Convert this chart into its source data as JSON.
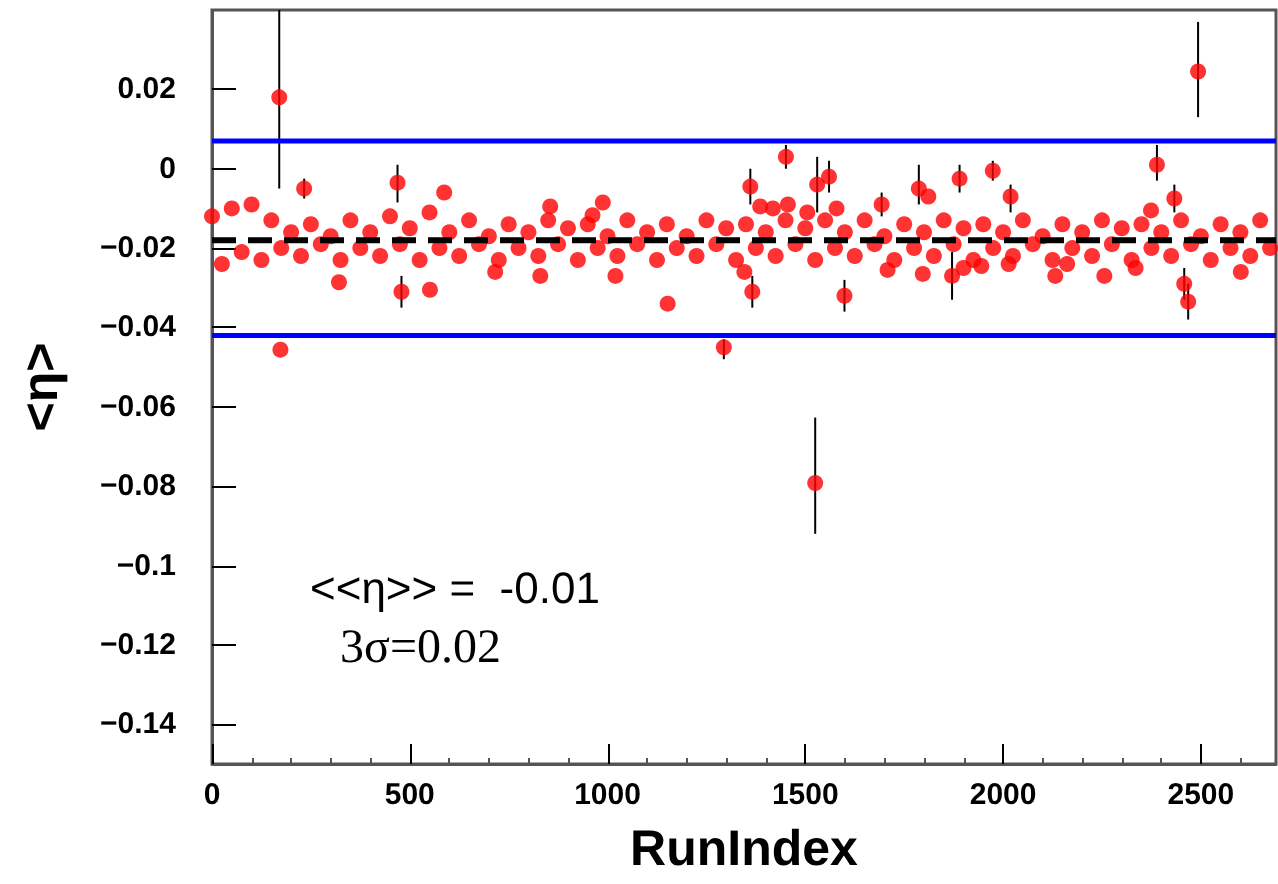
{
  "chart_data": {
    "type": "scatter",
    "xlabel": "RunIndex",
    "ylabel": "<η>",
    "xlim": [
      0,
      2690
    ],
    "xticks": [
      0,
      500,
      1000,
      1500,
      2000,
      2500
    ],
    "ylim": [
      -0.15,
      0.04
    ],
    "yticks": [
      {
        "value": -0.14,
        "label": "−0.14"
      },
      {
        "value": -0.12,
        "label": "−0.12"
      },
      {
        "value": -0.1,
        "label": "−0.1"
      },
      {
        "value": -0.08,
        "label": "−0.08"
      },
      {
        "value": -0.06,
        "label": "−0.06"
      },
      {
        "value": -0.04,
        "label": "−0.04"
      },
      {
        "value": -0.02,
        "label": "−0.02"
      },
      0,
      0.02
    ],
    "grid": false,
    "marker": "circle",
    "series": [
      {
        "color": "#ff0000",
        "x": [
          0,
          25,
          50,
          75,
          100,
          125,
          150,
          175,
          200,
          225,
          250,
          275,
          300,
          325,
          350,
          375,
          400,
          425,
          450,
          475,
          500,
          525,
          550,
          575,
          600,
          625,
          650,
          675,
          700,
          725,
          750,
          775,
          800,
          825,
          850,
          875,
          900,
          925,
          950,
          975,
          1000,
          1025,
          1050,
          1075,
          1100,
          1125,
          1150,
          1175,
          1200,
          1225,
          1250,
          1275,
          1300,
          1325,
          1350,
          1375,
          1400,
          1425,
          1450,
          1475,
          1500,
          1525,
          1550,
          1575,
          1600,
          1625,
          1650,
          1675,
          1700,
          1725,
          1750,
          1775,
          1800,
          1825,
          1850,
          1875,
          1900,
          1925,
          1950,
          1975,
          2000,
          2025,
          2050,
          2075,
          2100,
          2125,
          2150,
          2175,
          2200,
          2225,
          2250,
          2275,
          2300,
          2325,
          2350,
          2375,
          2400,
          2425,
          2450,
          2475,
          2500,
          2525,
          2550,
          2575,
          2600,
          2625,
          2650,
          2675
        ],
        "values": [
          -0.012,
          -0.024,
          -0.01,
          -0.021,
          -0.009,
          -0.023,
          -0.013,
          -0.02,
          -0.016,
          -0.022,
          -0.014,
          -0.019,
          -0.017,
          -0.023,
          -0.013,
          -0.02,
          -0.016,
          -0.022,
          -0.012,
          -0.019,
          -0.015,
          -0.023,
          -0.011,
          -0.02,
          -0.016,
          -0.022,
          -0.013,
          -0.019,
          -0.017,
          -0.023,
          -0.014,
          -0.02,
          -0.016,
          -0.022,
          -0.013,
          -0.019,
          -0.015,
          -0.023,
          -0.014,
          -0.02,
          -0.017,
          -0.022,
          -0.013,
          -0.019,
          -0.016,
          -0.023,
          -0.014,
          -0.02,
          -0.017,
          -0.022,
          -0.013,
          -0.019,
          -0.015,
          -0.023,
          -0.014,
          -0.02,
          -0.016,
          -0.022,
          -0.013,
          -0.019,
          -0.015,
          -0.023,
          -0.013,
          -0.02,
          -0.016,
          -0.022,
          -0.013,
          -0.019,
          -0.017,
          -0.023,
          -0.014,
          -0.02,
          -0.016,
          -0.022,
          -0.013,
          -0.019,
          -0.015,
          -0.023,
          -0.014,
          -0.02,
          -0.016,
          -0.022,
          -0.013,
          -0.019,
          -0.017,
          -0.023,
          -0.014,
          -0.02,
          -0.016,
          -0.022,
          -0.013,
          -0.019,
          -0.015,
          -0.023,
          -0.014,
          -0.02,
          -0.016,
          -0.022,
          -0.013,
          -0.019,
          -0.017,
          -0.023,
          -0.014,
          -0.02,
          -0.016,
          -0.022,
          -0.013,
          -0.02
        ]
      },
      {
        "color": "#ff0000",
        "x": [
          170,
          173,
          233,
          321,
          469,
          479,
          551,
          587,
          716,
          830,
          855,
          962,
          988,
          1020,
          1152,
          1294,
          1346,
          1361,
          1366,
          1386,
          1418,
          1451,
          1456,
          1505,
          1525,
          1530,
          1560,
          1579,
          1599,
          1693,
          1708,
          1787,
          1797,
          1811,
          1871,
          1890,
          1900,
          1945,
          1974,
          2014,
          2019,
          2132,
          2162,
          2256,
          2335,
          2374,
          2389,
          2433,
          2458,
          2468,
          2493,
          2601
        ],
        "values": [
          0.018,
          -0.0456,
          -0.005,
          -0.0286,
          -0.0035,
          -0.031,
          -0.0305,
          -0.006,
          -0.026,
          -0.027,
          -0.0095,
          -0.0117,
          -0.0085,
          -0.027,
          -0.034,
          -0.045,
          -0.026,
          -0.0045,
          -0.031,
          -0.0095,
          -0.01,
          0.003,
          -0.009,
          -0.011,
          -0.0792,
          -0.004,
          -0.002,
          -0.01,
          -0.032,
          -0.009,
          -0.0255,
          -0.005,
          -0.0265,
          -0.007,
          -0.027,
          -0.0025,
          -0.025,
          -0.0245,
          -0.0005,
          -0.024,
          -0.007,
          -0.027,
          -0.024,
          -0.027,
          -0.025,
          -0.0105,
          0.001,
          -0.0075,
          -0.029,
          -0.0335,
          0.0245,
          -0.026
        ],
        "errors": [
          [
            -0.005,
            0.04
          ],
          null,
          [
            -0.0075,
            -0.0025
          ],
          null,
          [
            -0.0085,
            0.001
          ],
          [
            -0.035,
            -0.027
          ],
          null,
          null,
          null,
          null,
          null,
          null,
          null,
          null,
          null,
          [
            -0.048,
            -0.043
          ],
          null,
          [
            -0.009,
            0
          ],
          [
            -0.035,
            -0.027
          ],
          null,
          null,
          [
            0,
            0.006
          ],
          null,
          null,
          [
            -0.092,
            -0.0627
          ],
          [
            -0.011,
            0.003
          ],
          [
            -0.006,
            0.002
          ],
          null,
          [
            -0.036,
            -0.028
          ],
          [
            -0.012,
            -0.006
          ],
          null,
          [
            -0.009,
            0.001
          ],
          null,
          null,
          [
            -0.033,
            -0.021
          ],
          [
            -0.006,
            0.001
          ],
          null,
          null,
          [
            -0.003,
            0.002
          ],
          null,
          [
            -0.011,
            -0.004
          ],
          null,
          null,
          null,
          null,
          null,
          [
            -0.003,
            0.006
          ],
          [
            -0.011,
            -0.004
          ],
          [
            -0.033,
            -0.025
          ],
          [
            -0.038,
            -0.029
          ],
          [
            0.013,
            0.037
          ],
          null
        ]
      }
    ],
    "ref_lines": [
      {
        "axis": "y",
        "value": 0.007,
        "color": "#0000ff",
        "line_style": "solid"
      },
      {
        "axis": "y",
        "value": -0.042,
        "color": "#0000ff",
        "line_style": "solid"
      },
      {
        "axis": "y",
        "value": -0.018,
        "color": "#000000",
        "line_style": "dashed"
      }
    ],
    "annotations": [
      "<<η>> =  -0.01",
      "3σ=0.02"
    ]
  }
}
